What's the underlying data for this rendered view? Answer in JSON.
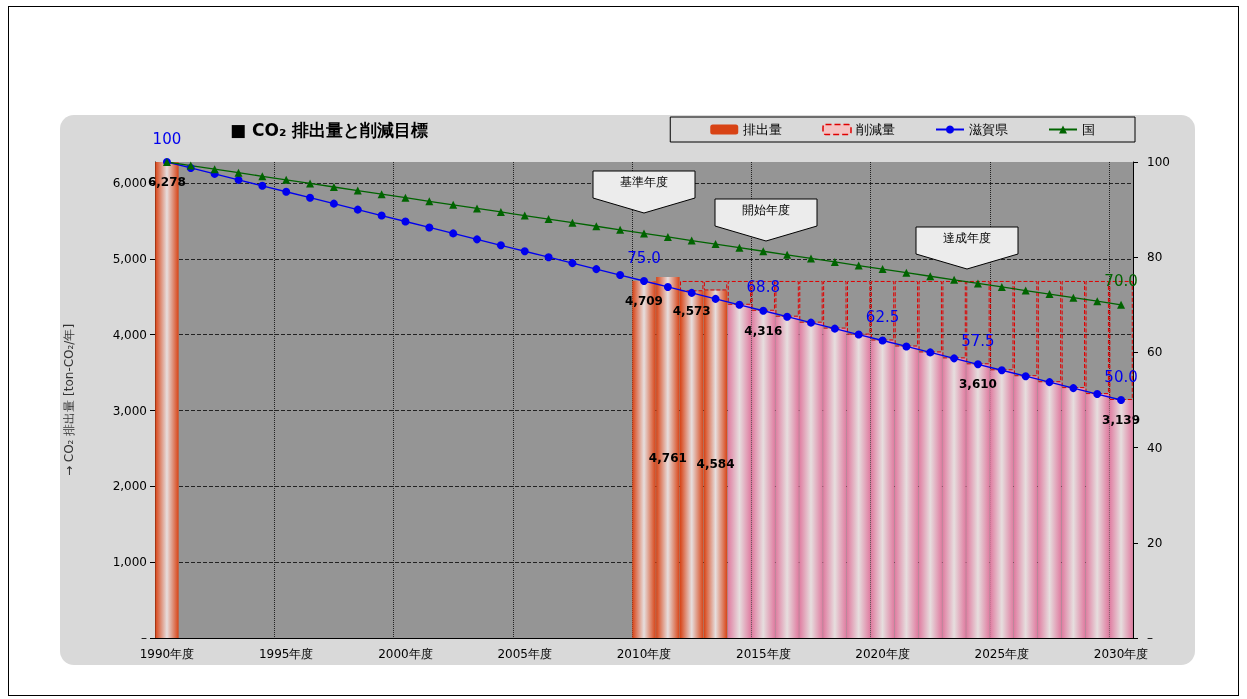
{
  "chart_data": {
    "type": "bar",
    "title": "■ CO₂ 排出量と削減目標",
    "ylabel": "→ CO₂ 排出量 [ton-CO₂/年]",
    "categories": [
      "1990年度",
      null,
      null,
      null,
      null,
      "1995年度",
      null,
      null,
      null,
      null,
      "2000年度",
      null,
      null,
      null,
      null,
      "2005年度",
      null,
      null,
      null,
      null,
      "2010年度",
      null,
      null,
      null,
      null,
      "2015年度",
      null,
      null,
      null,
      null,
      "2020年度",
      null,
      null,
      null,
      null,
      "2025年度",
      null,
      null,
      null,
      null,
      "2030年度"
    ],
    "stacked": true,
    "series": [
      {
        "name": "排出量",
        "color": "#d84315",
        "colors": [
          "#d84315",
          null,
          null,
          null,
          null,
          null,
          null,
          null,
          null,
          null,
          null,
          null,
          null,
          null,
          null,
          null,
          null,
          null,
          null,
          null,
          "#d84315",
          "#d84315",
          "#d84315",
          "#d84315",
          "#e07ba0",
          "#e07ba0",
          "#e07ba0",
          "#e07ba0",
          "#e07ba0",
          "#e07ba0",
          "#e07ba0",
          "#e07ba0",
          "#e07ba0",
          "#e07ba0",
          "#e07ba0",
          "#e07ba0",
          "#e07ba0",
          "#e07ba0",
          "#e07ba0",
          "#e07ba0",
          "#e07ba0"
        ],
        "values": [
          6278,
          null,
          null,
          null,
          null,
          null,
          null,
          null,
          null,
          null,
          null,
          null,
          null,
          null,
          null,
          null,
          null,
          null,
          null,
          null,
          4709,
          4761,
          4573,
          4584,
          4395,
          4316,
          4238,
          4159,
          4081,
          4002,
          3924,
          3845,
          3767,
          3688,
          3610,
          3531,
          3453,
          3374,
          3296,
          3217,
          3139
        ],
        "value_labels": [
          "6,278",
          null,
          null,
          null,
          null,
          null,
          null,
          null,
          null,
          null,
          null,
          null,
          null,
          null,
          null,
          null,
          null,
          null,
          null,
          null,
          "4,709",
          "4,761",
          "4,573",
          "4,584",
          null,
          "4,316",
          null,
          null,
          null,
          null,
          null,
          null,
          null,
          null,
          "3,610",
          null,
          null,
          null,
          null,
          null,
          "3,139"
        ]
      },
      {
        "name": "削減量",
        "color": "#e00000",
        "line_style": "dashed",
        "values": [
          null,
          null,
          null,
          null,
          null,
          null,
          null,
          null,
          null,
          null,
          null,
          null,
          null,
          null,
          null,
          null,
          null,
          null,
          null,
          null,
          null,
          null,
          136,
          125,
          314,
          393,
          471,
          550,
          628,
          707,
          785,
          864,
          942,
          1021,
          1099,
          1178,
          1256,
          1335,
          1413,
          1492,
          1570
        ]
      },
      {
        "name": "滋賀県",
        "type": "line",
        "axis": "y2",
        "color": "#0000ee",
        "marker": "circle",
        "values": [
          100,
          98.75,
          97.5,
          96.25,
          95,
          93.75,
          92.5,
          91.25,
          90,
          88.75,
          87.5,
          86.25,
          85,
          83.75,
          82.5,
          81.25,
          80,
          78.75,
          77.5,
          76.25,
          75,
          73.75,
          72.5,
          71.25,
          70,
          68.75,
          67.5,
          66.25,
          65,
          63.75,
          62.5,
          61.25,
          60,
          58.75,
          57.5,
          56.25,
          55,
          53.75,
          52.5,
          51.25,
          50
        ],
        "value_labels": [
          "100",
          null,
          null,
          null,
          null,
          null,
          null,
          null,
          null,
          null,
          null,
          null,
          null,
          null,
          null,
          null,
          null,
          null,
          null,
          null,
          "75.0",
          null,
          null,
          null,
          null,
          "68.8",
          null,
          null,
          null,
          null,
          "62.5",
          null,
          null,
          null,
          "57.5",
          null,
          null,
          null,
          null,
          null,
          "50.0"
        ]
      },
      {
        "name": "国",
        "type": "line",
        "axis": "y2",
        "color": "#006400",
        "marker": "triangle",
        "values": [
          100,
          99.25,
          98.5,
          97.75,
          97,
          96.25,
          95.5,
          94.75,
          94,
          93.25,
          92.5,
          91.75,
          91,
          90.25,
          89.5,
          88.75,
          88,
          87.25,
          86.5,
          85.75,
          85,
          84.25,
          83.5,
          82.75,
          82,
          81.25,
          80.5,
          79.75,
          79,
          78.25,
          77.5,
          76.75,
          76,
          75.25,
          74.5,
          73.75,
          73,
          72.25,
          71.5,
          70.75,
          70
        ],
        "value_labels": [
          null,
          null,
          null,
          null,
          null,
          null,
          null,
          null,
          null,
          null,
          null,
          null,
          null,
          null,
          null,
          null,
          null,
          null,
          null,
          null,
          null,
          null,
          null,
          null,
          null,
          null,
          null,
          null,
          null,
          null,
          null,
          null,
          null,
          null,
          null,
          null,
          null,
          null,
          null,
          null,
          "70.0"
        ]
      }
    ],
    "ylim": [
      0,
      6278
    ],
    "yticks": [
      {
        "value": 0,
        "label": "–"
      },
      {
        "value": 1000,
        "label": "1,000"
      },
      {
        "value": 2000,
        "label": "2,000"
      },
      {
        "value": 3000,
        "label": "3,000"
      },
      {
        "value": 4000,
        "label": "4,000"
      },
      {
        "value": 5000,
        "label": "5,000"
      },
      {
        "value": 6000,
        "label": "6,000"
      }
    ],
    "y2lim": [
      0,
      100
    ],
    "y2ticks": [
      {
        "value": 0,
        "label": "–"
      },
      20,
      40,
      60,
      80,
      100
    ],
    "grid": true,
    "legend": "top right",
    "annotations": [
      "基準年度",
      "開始年度",
      "達成年度"
    ]
  }
}
